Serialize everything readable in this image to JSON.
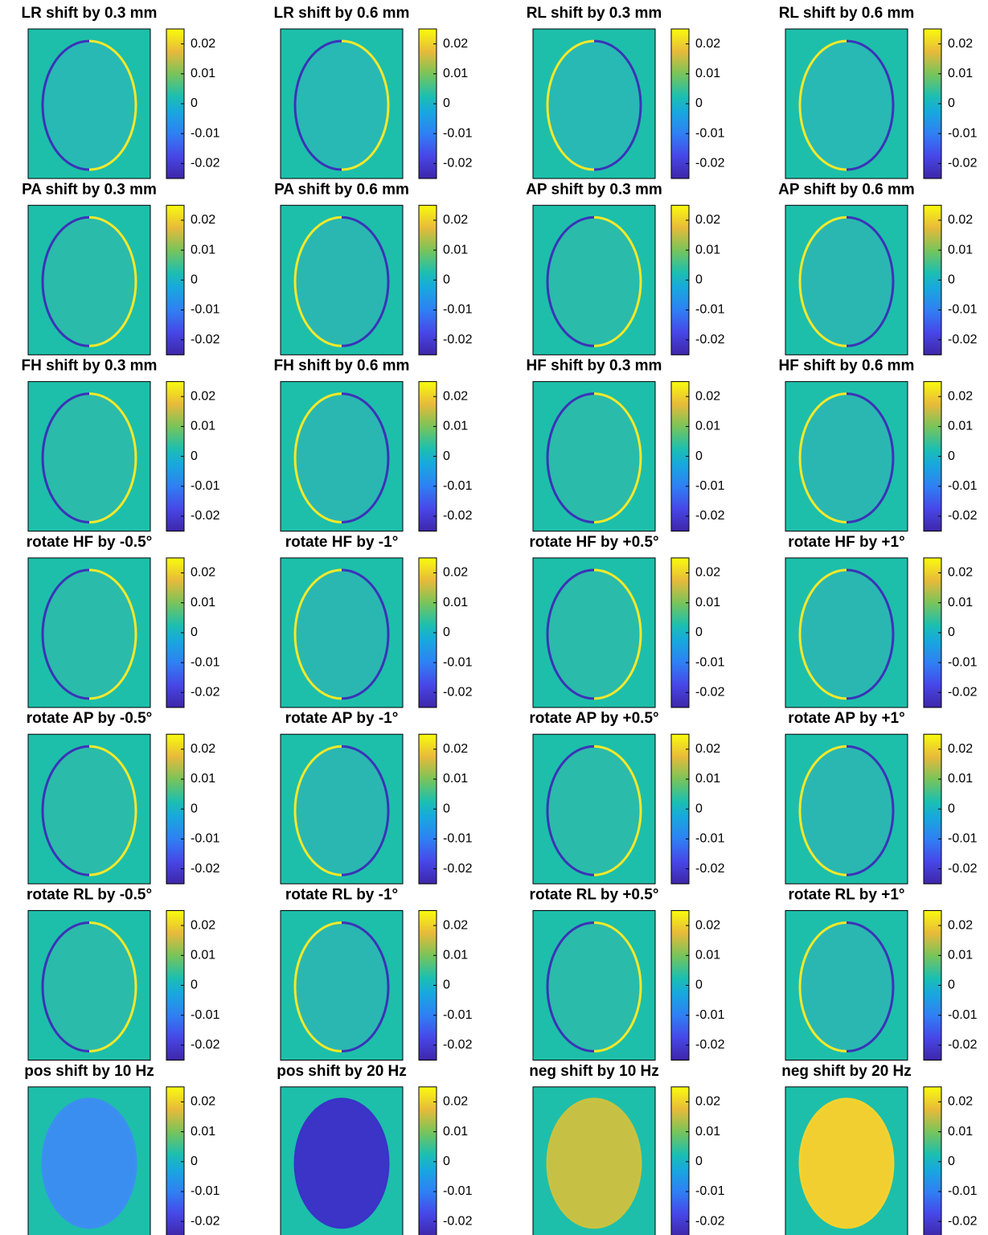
{
  "panels": [
    {
      "title": "LR shift by 0.3 mm"
    },
    {
      "title": "LR shift by 0.6 mm"
    },
    {
      "title": "RL shift by 0.3 mm"
    },
    {
      "title": "RL shift by 0.6 mm"
    },
    {
      "title": "PA shift by 0.3 mm"
    },
    {
      "title": "PA shift by 0.6 mm"
    },
    {
      "title": "AP shift by 0.3 mm"
    },
    {
      "title": "AP shift by 0.6 mm"
    },
    {
      "title": "FH shift by 0.3 mm"
    },
    {
      "title": "FH shift by 0.6 mm"
    },
    {
      "title": "HF shift by 0.3 mm"
    },
    {
      "title": "HF shift by 0.6 mm"
    },
    {
      "title": "rotate HF by -0.5°"
    },
    {
      "title": "rotate HF by -1°"
    },
    {
      "title": "rotate HF by +0.5°"
    },
    {
      "title": "rotate HF by +1°"
    },
    {
      "title": "rotate AP by -0.5°"
    },
    {
      "title": "rotate AP by -1°"
    },
    {
      "title": "rotate AP by +0.5°"
    },
    {
      "title": "rotate AP by +1°"
    },
    {
      "title": "rotate RL by -0.5°"
    },
    {
      "title": "rotate RL by -1°"
    },
    {
      "title": "rotate RL by +0.5°"
    },
    {
      "title": "rotate RL by +1°"
    },
    {
      "title": "pos shift by 10 Hz"
    },
    {
      "title": "pos shift by 20 Hz"
    },
    {
      "title": "neg shift by 10 Hz"
    },
    {
      "title": "neg shift by 20 Hz"
    }
  ],
  "colorbar": {
    "clim": [
      -0.025,
      0.025
    ],
    "ticks": [
      0.02,
      0.01,
      0,
      -0.01,
      -0.02
    ]
  }
}
